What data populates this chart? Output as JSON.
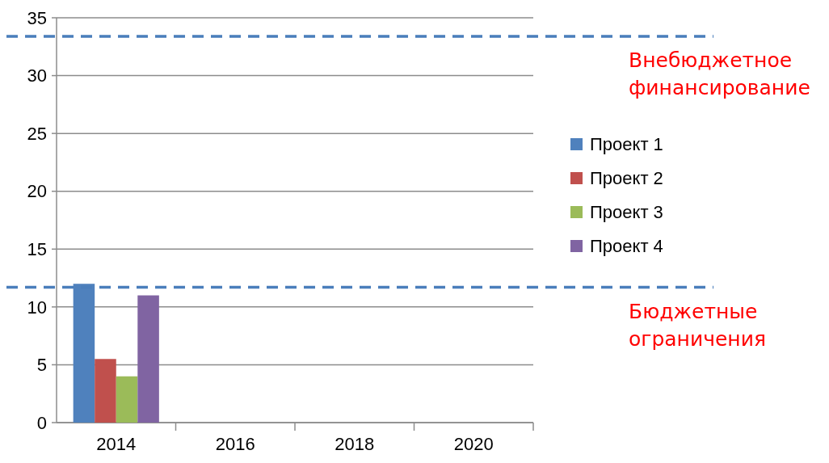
{
  "chart_data": {
    "type": "bar",
    "categories": [
      "2014",
      "2016",
      "2018",
      "2020"
    ],
    "series": [
      {
        "name": "Проект 1",
        "color": "#4f81bd",
        "values": [
          12,
          null,
          null,
          null
        ]
      },
      {
        "name": "Проект 2",
        "color": "#c0504d",
        "values": [
          5.5,
          null,
          null,
          null
        ]
      },
      {
        "name": "Проект 3",
        "color": "#9bbb59",
        "values": [
          4,
          null,
          null,
          null
        ]
      },
      {
        "name": "Проект 4",
        "color": "#8064a2",
        "values": [
          11,
          null,
          null,
          null
        ]
      }
    ],
    "ylim": [
      0,
      35
    ],
    "yticks": [
      0,
      5,
      10,
      15,
      20,
      25,
      30,
      35
    ],
    "grid": "y",
    "legend": "right",
    "ref_lines": [
      {
        "axis": "y",
        "value": 33.4,
        "label": "Внебюджетное финансирование",
        "color": "#4a7ebb",
        "line_style": "dashed"
      },
      {
        "axis": "y",
        "value": 11.7,
        "label": "Бюджетные ограничения",
        "color": "#4a7ebb",
        "line_style": "dashed"
      }
    ]
  }
}
